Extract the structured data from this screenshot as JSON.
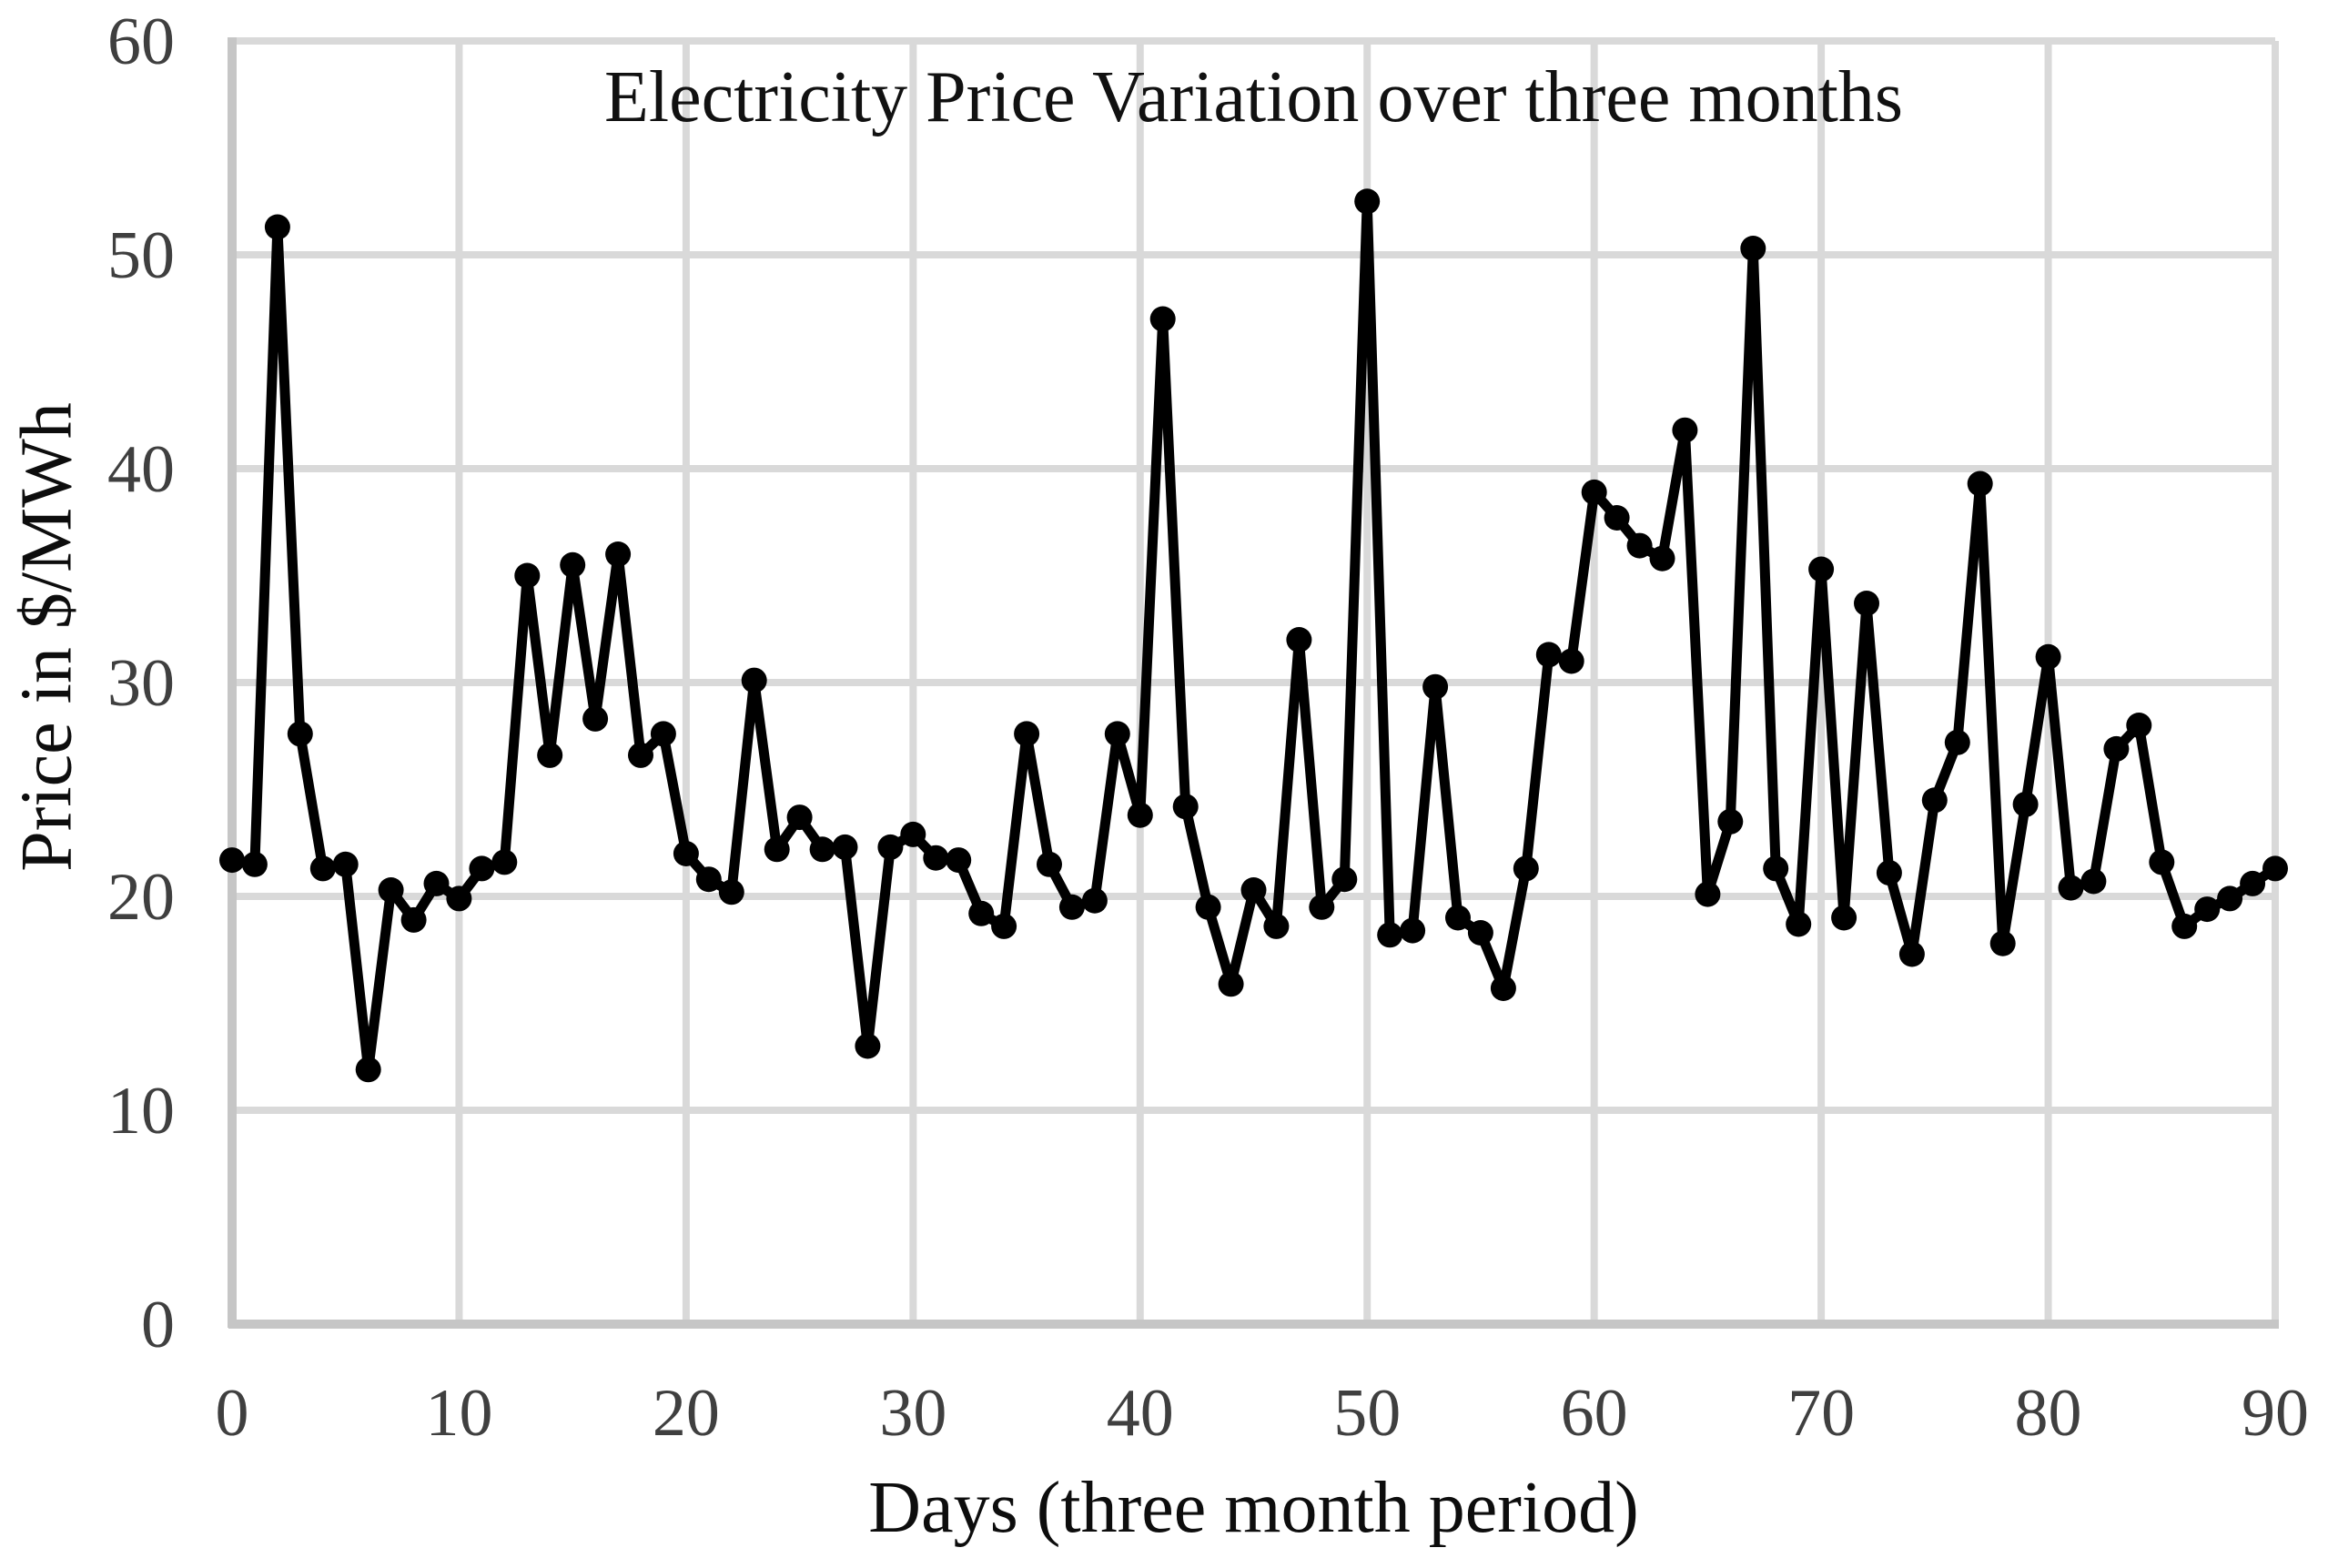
{
  "chart_data": {
    "type": "line",
    "title": "Electricity Price Variation over three months",
    "xlabel": "Days (three month period)",
    "ylabel": "Price in $/MWh",
    "xlim": [
      0,
      90
    ],
    "ylim": [
      0,
      60
    ],
    "x_ticks": [
      0,
      10,
      20,
      30,
      40,
      50,
      60,
      70,
      80,
      90
    ],
    "y_ticks": [
      0,
      10,
      20,
      30,
      40,
      50,
      60
    ],
    "grid": true,
    "legend": "none",
    "x_start": 0,
    "x_step": 1,
    "values": [
      21.7,
      21.5,
      51.3,
      27.6,
      21.3,
      21.5,
      11.9,
      20.3,
      18.9,
      20.6,
      19.9,
      21.3,
      21.6,
      35.0,
      26.6,
      35.5,
      28.3,
      36.0,
      26.6,
      27.6,
      22.0,
      20.8,
      20.2,
      30.1,
      22.2,
      23.7,
      22.2,
      22.3,
      13.0,
      22.3,
      22.9,
      21.8,
      21.7,
      19.2,
      18.6,
      27.6,
      21.5,
      19.5,
      19.8,
      27.6,
      23.8,
      47.0,
      24.2,
      19.5,
      15.9,
      20.3,
      18.6,
      32.0,
      19.5,
      20.8,
      52.5,
      18.2,
      18.4,
      29.8,
      19.0,
      18.3,
      15.7,
      21.3,
      31.3,
      31.0,
      38.9,
      37.7,
      36.4,
      35.8,
      41.8,
      20.1,
      23.5,
      50.3,
      21.3,
      18.7,
      35.3,
      19.0,
      33.7,
      21.1,
      17.3,
      24.5,
      27.2,
      39.3,
      17.8,
      24.3,
      31.2,
      20.4,
      20.7,
      26.9,
      28.0,
      21.6,
      18.6,
      19.4,
      19.9,
      20.6,
      21.3
    ],
    "colors": {
      "line": "#000000",
      "marker": "#000000",
      "grid": "#d9d9d9",
      "axis": "#c6c6c6",
      "tick_text": "#3f3f3f",
      "title_text": "#111111",
      "background": "#ffffff"
    }
  }
}
